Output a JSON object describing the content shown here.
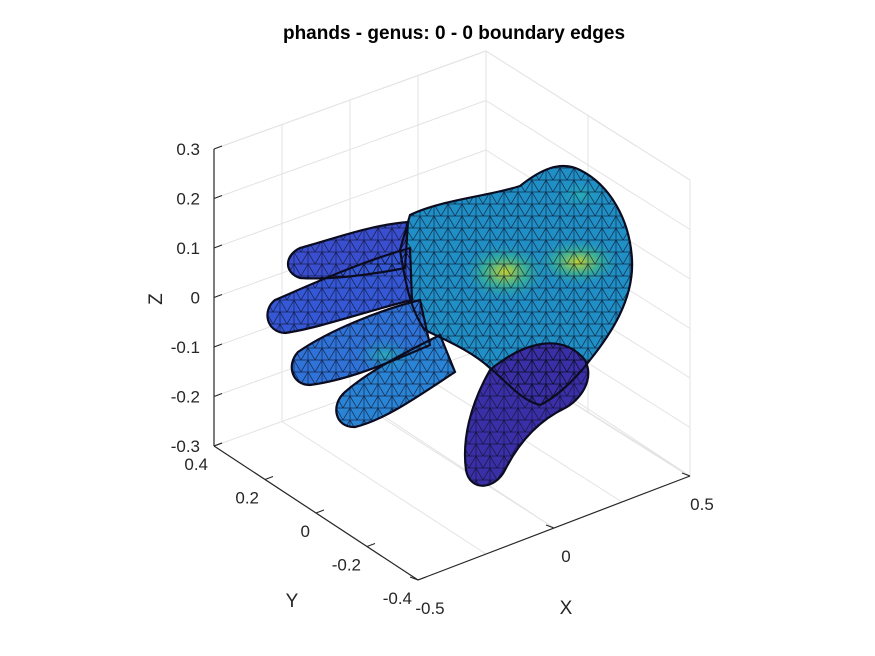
{
  "chart_data": {
    "type": "3d-surface-mesh",
    "title": "phands - genus: 0 - 0 boundary edges",
    "axes": {
      "x": {
        "label": "X",
        "ticks": [
          "-0.5",
          "0",
          "0.5"
        ]
      },
      "y": {
        "label": "Y",
        "ticks": [
          "-0.4",
          "-0.2",
          "0",
          "0.2",
          "0.4"
        ]
      },
      "z": {
        "label": "Z",
        "ticks": [
          "0.3",
          "0.2",
          "0.1",
          "0",
          "-0.1",
          "-0.2",
          "-0.3"
        ]
      }
    },
    "grid": true,
    "colormap": "parula",
    "colors": {
      "mesh_edge": "#0c0c20",
      "low": "#3b2fa8",
      "mid": "#1f8fc6",
      "high": "#cbd42a",
      "axis": "#262626",
      "grid": "#e3e3e3"
    }
  }
}
